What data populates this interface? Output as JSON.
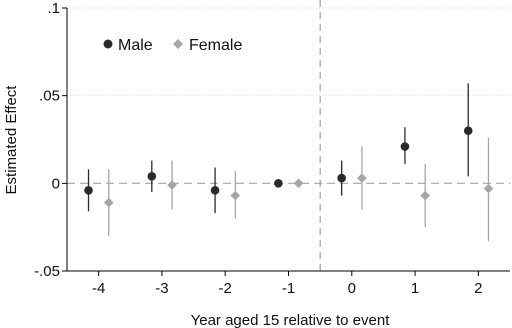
{
  "chart_data": {
    "type": "scatter",
    "title": "",
    "xlabel": "Year aged 15 relative to event",
    "ylabel": "Estimated Effect",
    "x_ticks": [
      -4,
      -3,
      -2,
      -1,
      0,
      1,
      2
    ],
    "y_ticks": [
      {
        "value": 0.1,
        "label": ".1"
      },
      {
        "value": 0.05,
        "label": ".05"
      },
      {
        "value": 0,
        "label": "0"
      },
      {
        "value": -0.05,
        "label": "-.05"
      }
    ],
    "xlim": [
      -4.5,
      2.5
    ],
    "ylim": [
      -0.05,
      0.1
    ],
    "event_line_x": -0.5,
    "grid": "horizontal dotted",
    "legend_position": "top-left",
    "series": [
      {
        "name": "Male",
        "color": "#2b2b2b",
        "marker": "circle",
        "offset": -0.16,
        "points": [
          {
            "x": -4,
            "y": -0.004,
            "lo": -0.016,
            "hi": 0.008
          },
          {
            "x": -3,
            "y": 0.004,
            "lo": -0.005,
            "hi": 0.013
          },
          {
            "x": -2,
            "y": -0.004,
            "lo": -0.017,
            "hi": 0.009
          },
          {
            "x": -1,
            "y": 0.0,
            "lo": 0.0,
            "hi": 0.0
          },
          {
            "x": 0,
            "y": 0.003,
            "lo": -0.007,
            "hi": 0.013
          },
          {
            "x": 1,
            "y": 0.021,
            "lo": 0.011,
            "hi": 0.032
          },
          {
            "x": 2,
            "y": 0.03,
            "lo": 0.004,
            "hi": 0.057
          }
        ]
      },
      {
        "name": "Female",
        "color": "#a6a6a6",
        "marker": "diamond",
        "offset": 0.16,
        "points": [
          {
            "x": -4,
            "y": -0.011,
            "lo": -0.03,
            "hi": 0.008
          },
          {
            "x": -3,
            "y": -0.001,
            "lo": -0.015,
            "hi": 0.013
          },
          {
            "x": -2,
            "y": -0.007,
            "lo": -0.02,
            "hi": 0.007
          },
          {
            "x": -1,
            "y": 0.0,
            "lo": 0.0,
            "hi": 0.0
          },
          {
            "x": 0,
            "y": 0.003,
            "lo": -0.015,
            "hi": 0.021
          },
          {
            "x": 1,
            "y": -0.007,
            "lo": -0.025,
            "hi": 0.011
          },
          {
            "x": 2,
            "y": -0.003,
            "lo": -0.033,
            "hi": 0.026
          }
        ]
      }
    ]
  }
}
